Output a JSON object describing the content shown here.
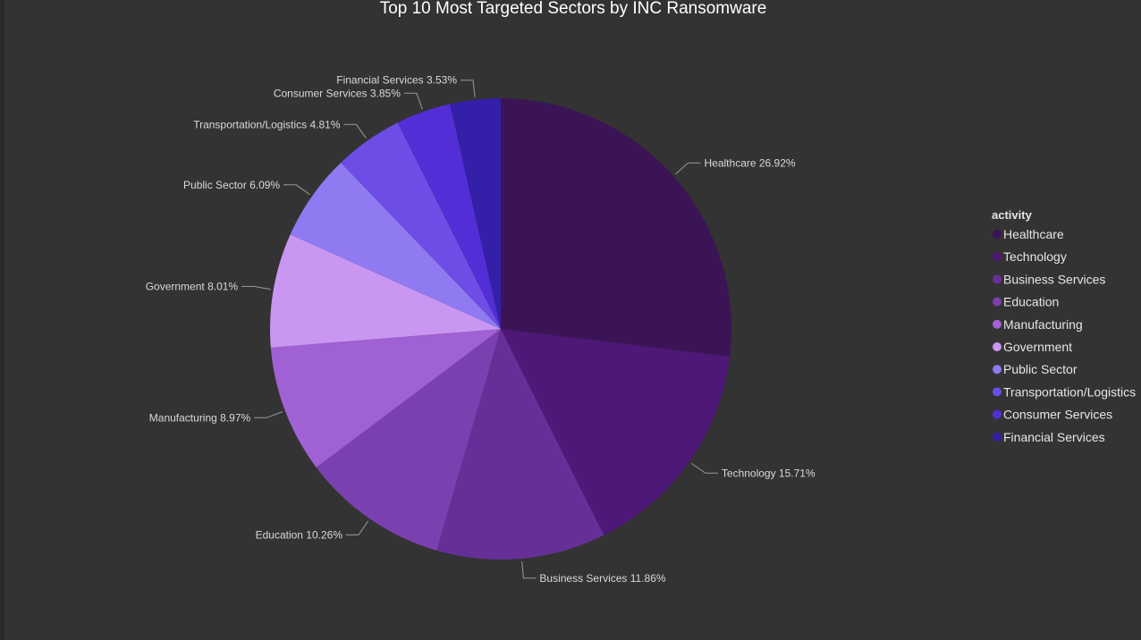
{
  "chart_data": {
    "type": "pie",
    "title": "Top 10 Most Targeted Sectors by INC Ransomware",
    "legend": {
      "title": "activity",
      "placement": "right"
    },
    "slices": [
      {
        "name": "Healthcare",
        "value": 26.92,
        "label": "Healthcare 26.92%",
        "color": "#3b1456"
      },
      {
        "name": "Technology",
        "value": 15.71,
        "label": "Technology 15.71%",
        "color": "#4e1878"
      },
      {
        "name": "Business Services",
        "value": 11.86,
        "label": "Business Services 11.86%",
        "color": "#662f98"
      },
      {
        "name": "Education",
        "value": 10.26,
        "label": "Education 10.26%",
        "color": "#7b40b0"
      },
      {
        "name": "Manufacturing",
        "value": 8.97,
        "label": "Manufacturing 8.97%",
        "color": "#a061d4"
      },
      {
        "name": "Government",
        "value": 8.01,
        "label": "Government 8.01%",
        "color": "#c996f2"
      },
      {
        "name": "Public Sector",
        "value": 6.09,
        "label": "Public Sector 6.09%",
        "color": "#8f7af2"
      },
      {
        "name": "Transportation/Logistics",
        "value": 4.81,
        "label": "Transportation/Logistics 4.81%",
        "color": "#6d4de6"
      },
      {
        "name": "Consumer Services",
        "value": 3.85,
        "label": "Consumer Services 3.85%",
        "color": "#532ed6"
      },
      {
        "name": "Financial Services",
        "value": 3.53,
        "label": "Financial Services 3.53%",
        "color": "#331fa8"
      }
    ]
  }
}
